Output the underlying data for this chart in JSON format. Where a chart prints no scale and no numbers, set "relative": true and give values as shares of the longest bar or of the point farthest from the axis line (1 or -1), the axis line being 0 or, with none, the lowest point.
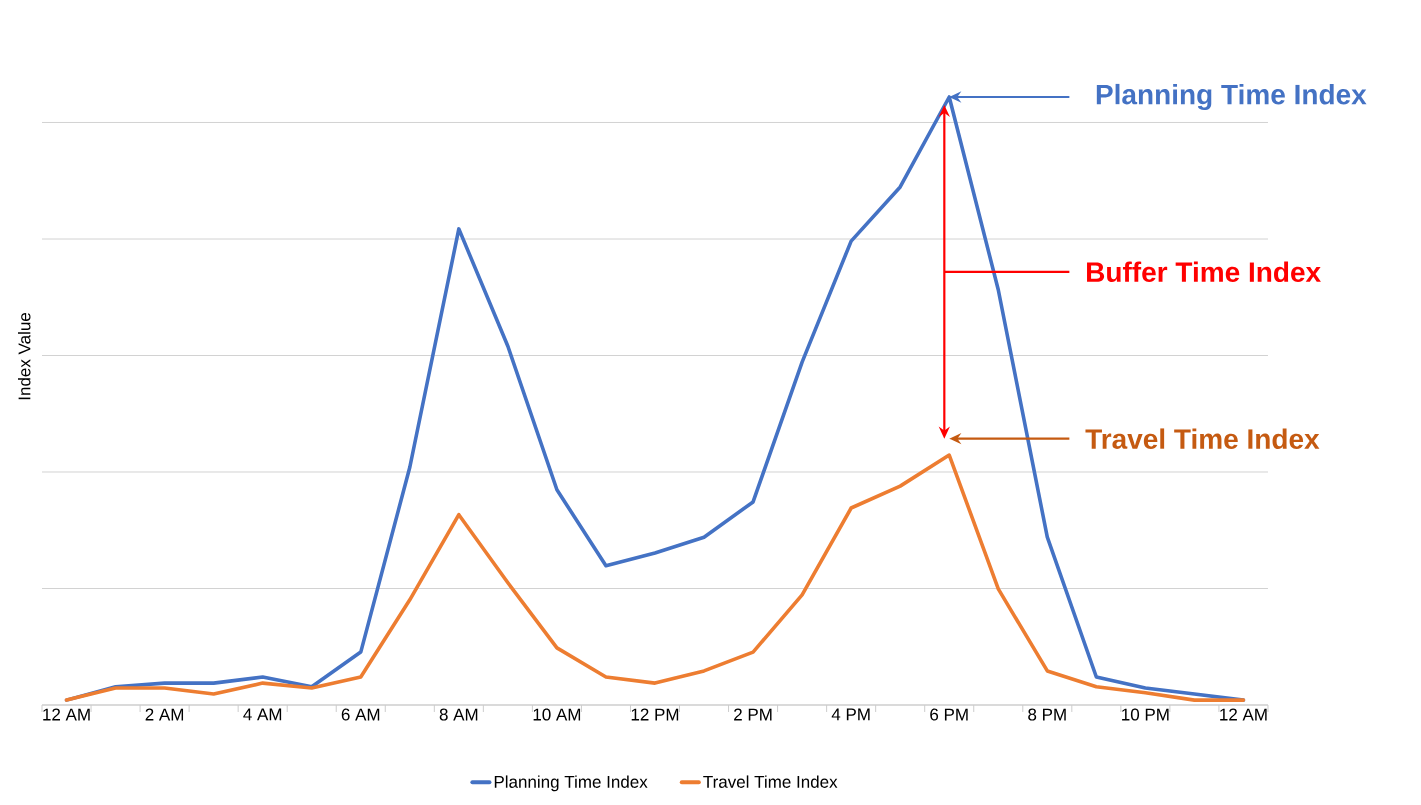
{
  "chart_data": {
    "type": "line",
    "relative": true,
    "ylabel": "Index Value",
    "categories": [
      "12 AM",
      null,
      "2 AM",
      null,
      "4 AM",
      null,
      "6 AM",
      null,
      "8 AM",
      null,
      "10 AM",
      null,
      "12 PM",
      null,
      "2 PM",
      null,
      "4 PM",
      null,
      "6 PM",
      null,
      "8 PM",
      null,
      "10 PM",
      null,
      "12 AM"
    ],
    "series": [
      {
        "name": "Planning Time Index",
        "color": "#4472c4",
        "values": [
          0.008,
          0.03,
          0.036,
          0.036,
          0.046,
          0.03,
          0.087,
          0.391,
          0.783,
          0.59,
          0.354,
          0.229,
          0.25,
          0.276,
          0.334,
          0.564,
          0.763,
          0.852,
          1,
          0.683,
          0.276,
          0.046,
          0.028,
          0.018,
          0.008
        ]
      },
      {
        "name": "Travel Time Index",
        "color": "#ed7d31",
        "values": [
          0.008,
          0.028,
          0.028,
          0.018,
          0.036,
          0.028,
          0.046,
          0.173,
          0.313,
          0.201,
          0.094,
          0.046,
          0.036,
          0.056,
          0.087,
          0.181,
          0.324,
          0.36,
          0.411,
          0.191,
          0.056,
          0.03,
          0.02,
          0.008,
          0.008
        ]
      }
    ],
    "annotations": [
      "Planning Time Index",
      "Buffer Time Index",
      "Travel Time Index"
    ],
    "grid": "y",
    "legend": "bottom",
    "marker": "none"
  }
}
